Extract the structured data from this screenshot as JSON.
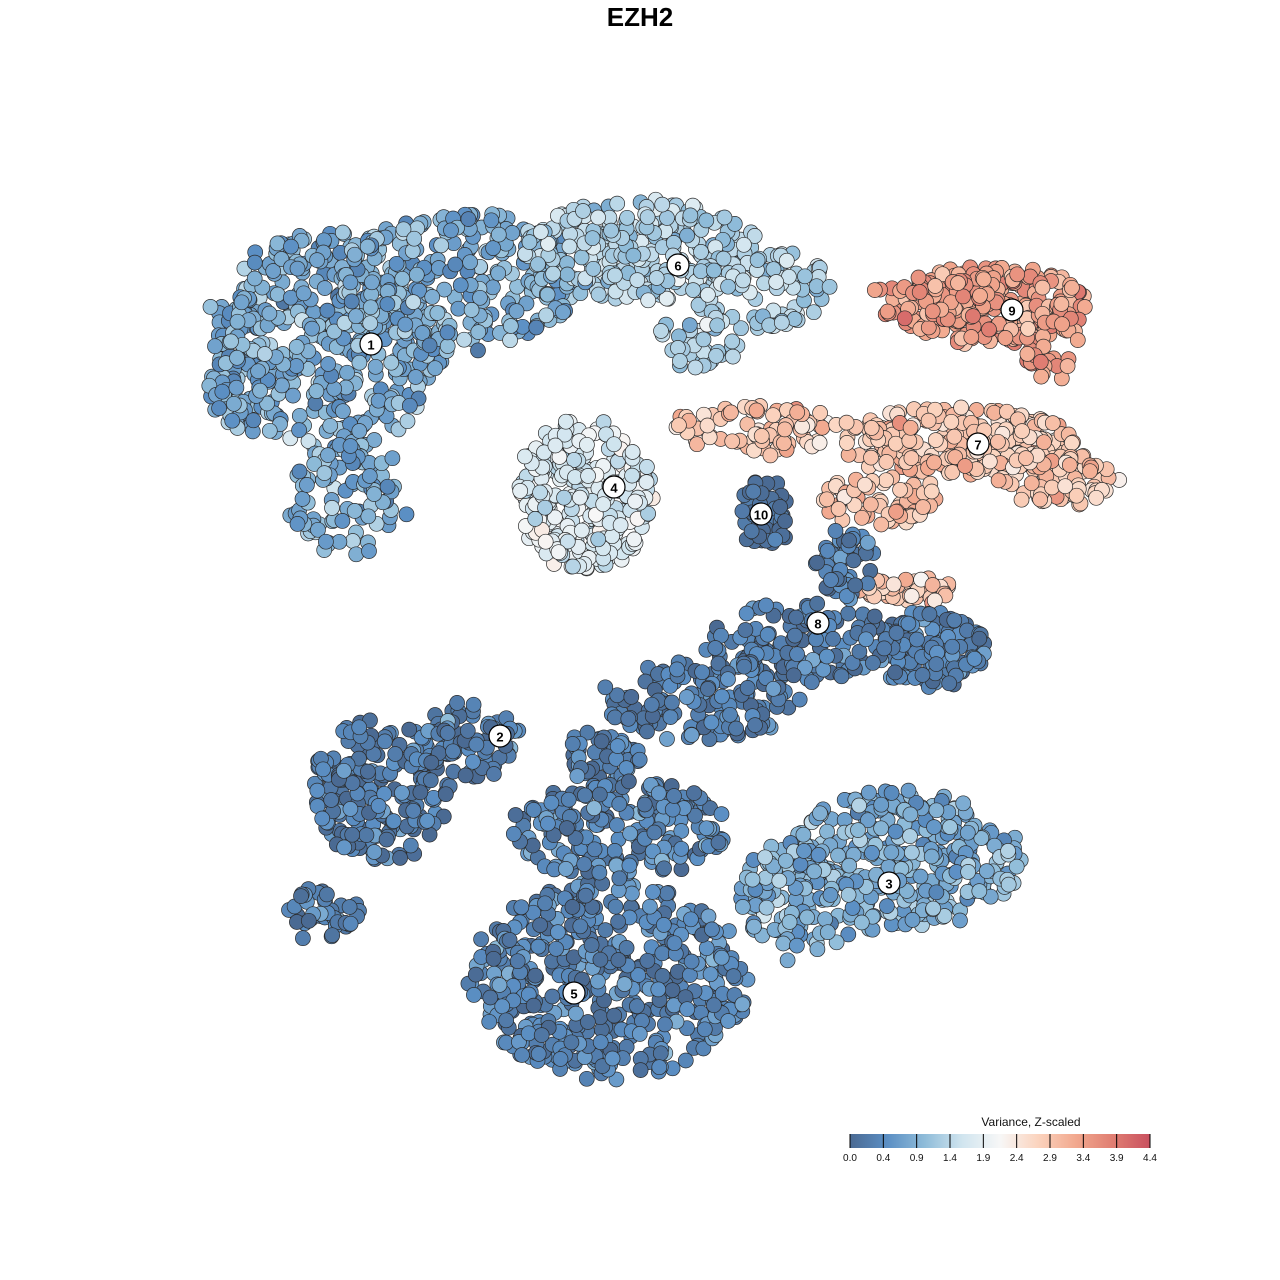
{
  "chart_data": {
    "type": "scatter",
    "title": "EZH2",
    "color_scale": {
      "label": "Variance, Z-scaled",
      "min": 0.0,
      "max": 4.4,
      "ticks": [
        "0.0",
        "0.4",
        "0.9",
        "1.4",
        "1.9",
        "2.4",
        "2.9",
        "3.4",
        "3.9",
        "4.4"
      ],
      "colors": [
        "#4a6a93",
        "#5b8fc4",
        "#8fbcd9",
        "#d1e5ef",
        "#f7f7f7",
        "#fbd4bf",
        "#f2a98f",
        "#e07e72",
        "#c9505f"
      ]
    },
    "clusters": [
      {
        "label": "1",
        "mean": 0.9
      },
      {
        "label": "2",
        "mean": 0.3
      },
      {
        "label": "3",
        "mean": 0.9
      },
      {
        "label": "4",
        "mean": 1.8
      },
      {
        "label": "5",
        "mean": 0.4
      },
      {
        "label": "6",
        "mean": 1.4
      },
      {
        "label": "7",
        "mean": 2.9
      },
      {
        "label": "8",
        "mean": 0.3
      },
      {
        "label": "9",
        "mean": 3.4
      },
      {
        "label": "10",
        "mean": 0.1
      }
    ]
  }
}
